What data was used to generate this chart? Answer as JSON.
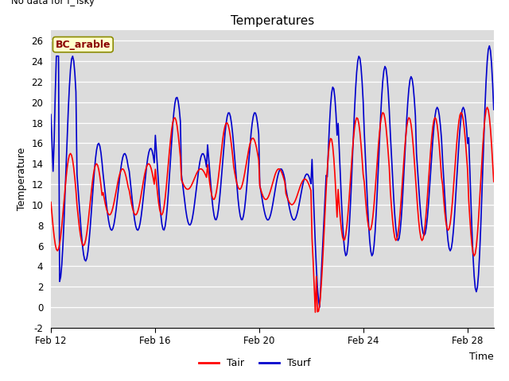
{
  "title": "Temperatures",
  "xlabel": "Time",
  "ylabel": "Temperature",
  "top_left_text": "No data for f_Tsky",
  "annotation_box": "BC_arable",
  "ylim": [
    -2,
    27
  ],
  "yticks": [
    -2,
    0,
    2,
    4,
    6,
    8,
    10,
    12,
    14,
    16,
    18,
    20,
    22,
    24,
    26
  ],
  "xtick_labels": [
    "Feb 12",
    "Feb 16",
    "Feb 20",
    "Feb 24",
    "Feb 28"
  ],
  "background_color": "#dcdcdc",
  "plot_bg_color": "#dcdcdc",
  "tair_color": "#ff0000",
  "tsurf_color": "#0000cc",
  "line_width": 1.2,
  "legend_labels": [
    "Tair",
    "Tsurf"
  ],
  "title_fontsize": 11,
  "tick_fontsize": 8.5,
  "label_fontsize": 9,
  "legend_fontsize": 9
}
